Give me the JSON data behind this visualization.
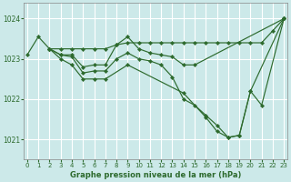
{
  "title": "Graphe pression niveau de la mer (hPa)",
  "bg_color": "#cce9e9",
  "grid_color": "#ffffff",
  "line_color": "#2d6a2d",
  "marker_color": "#2d6a2d",
  "ylim": [
    1020.5,
    1024.4
  ],
  "xlim": [
    -0.3,
    23.3
  ],
  "yticks": [
    1021,
    1022,
    1023,
    1024
  ],
  "xticks": [
    0,
    1,
    2,
    3,
    4,
    5,
    6,
    7,
    8,
    9,
    10,
    11,
    12,
    13,
    14,
    15,
    16,
    17,
    18,
    19,
    20,
    21,
    22,
    23
  ],
  "series": [
    {
      "x": [
        0,
        1,
        2,
        3,
        4,
        5,
        6,
        7,
        8,
        9,
        10,
        11,
        12,
        13,
        14,
        15,
        16,
        17,
        18,
        19,
        20,
        21,
        22,
        23
      ],
      "y": [
        1023.1,
        1023.55,
        1023.25,
        1023.25,
        1023.25,
        1023.25,
        1023.25,
        1023.25,
        1023.35,
        1023.4,
        1023.4,
        1023.4,
        1023.4,
        1023.4,
        1023.4,
        1023.4,
        1023.4,
        1023.4,
        1023.4,
        1023.4,
        1023.4,
        1023.4,
        1023.7,
        1024.0
      ]
    },
    {
      "x": [
        2,
        3,
        4,
        5,
        6,
        7,
        8,
        9,
        10,
        11,
        12,
        13,
        14,
        15,
        23
      ],
      "y": [
        1023.25,
        1023.1,
        1023.1,
        1022.8,
        1022.85,
        1022.85,
        1023.35,
        1023.55,
        1023.25,
        1023.15,
        1023.1,
        1023.05,
        1022.85,
        1022.85,
        1024.0
      ]
    },
    {
      "x": [
        2,
        3,
        4,
        5,
        6,
        7,
        8,
        9,
        10,
        11,
        12,
        13,
        14,
        15,
        16,
        17,
        18,
        19,
        20,
        21,
        23
      ],
      "y": [
        1023.25,
        1023.1,
        1023.05,
        1022.65,
        1022.7,
        1022.7,
        1023.0,
        1023.15,
        1023.0,
        1022.95,
        1022.85,
        1022.55,
        1022.0,
        1021.85,
        1021.6,
        1021.35,
        1021.05,
        1021.1,
        1022.2,
        1021.85,
        1024.0
      ]
    },
    {
      "x": [
        2,
        3,
        4,
        5,
        6,
        7,
        9,
        14,
        16,
        17,
        18,
        19,
        20,
        23
      ],
      "y": [
        1023.25,
        1023.0,
        1022.85,
        1022.5,
        1022.5,
        1022.5,
        1022.85,
        1022.15,
        1021.55,
        1021.2,
        1021.05,
        1021.1,
        1022.2,
        1024.0
      ]
    }
  ]
}
